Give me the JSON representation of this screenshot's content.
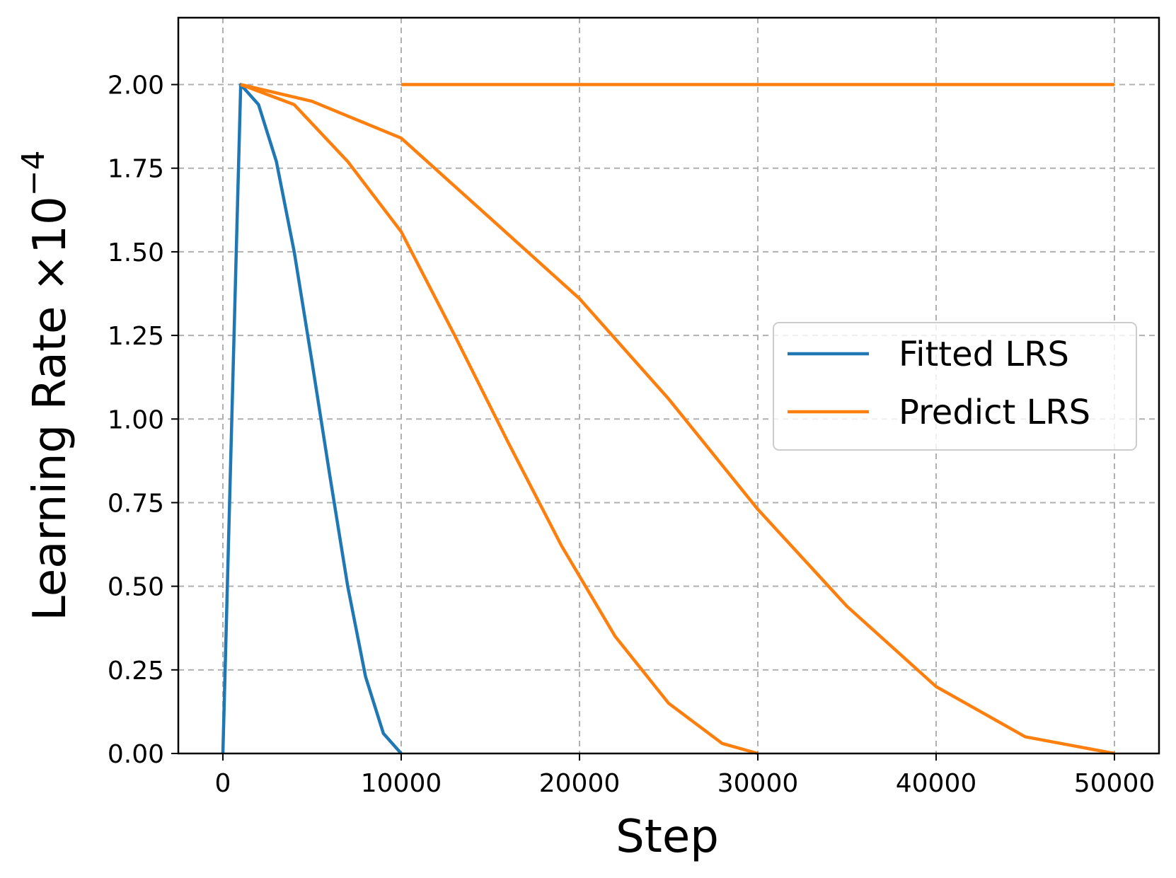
{
  "chart_data": {
    "type": "line",
    "xlabel": "Step",
    "ylabel": "Learning Rate ×10",
    "ylabel_exponent": "−4",
    "xlim": [
      -2500,
      52500
    ],
    "ylim": [
      0,
      2.2
    ],
    "grid": true,
    "legend_position": "center-right",
    "x_ticks": [
      0,
      10000,
      20000,
      30000,
      40000,
      50000
    ],
    "x_tick_labels": [
      "0",
      "10000",
      "20000",
      "30000",
      "40000",
      "50000"
    ],
    "y_ticks": [
      0,
      0.25,
      0.5,
      0.75,
      1.0,
      1.25,
      1.5,
      1.75,
      2.0
    ],
    "y_tick_labels": [
      "0.00",
      "0.25",
      "0.50",
      "0.75",
      "1.00",
      "1.25",
      "1.50",
      "1.75",
      "2.00"
    ],
    "series": [
      {
        "name": "Fitted LRS",
        "color": "#1f77b4",
        "x": [
          0,
          1000,
          2000,
          3000,
          4000,
          5000,
          6000,
          7000,
          8000,
          9000,
          10000
        ],
        "y": [
          0,
          2.0,
          1.94,
          1.77,
          1.5,
          1.17,
          0.83,
          0.5,
          0.23,
          0.06,
          0.0
        ]
      },
      {
        "name": "Predict LRS",
        "color": "#ff7f0e",
        "x": [
          10000,
          20000,
          30000,
          40000,
          50000
        ],
        "y": [
          2.0,
          2.0,
          2.0,
          2.0,
          2.0
        ]
      },
      {
        "name": "Predict LRS",
        "color": "#ff7f0e",
        "x": [
          1000,
          4000,
          7000,
          10000,
          13000,
          16000,
          19000,
          22000,
          25000,
          28000,
          30000
        ],
        "y": [
          2.0,
          1.94,
          1.77,
          1.56,
          1.25,
          0.93,
          0.62,
          0.35,
          0.15,
          0.03,
          0.0
        ]
      },
      {
        "name": "Predict LRS",
        "color": "#ff7f0e",
        "x": [
          1000,
          5000,
          10000,
          15000,
          20000,
          25000,
          30000,
          35000,
          40000,
          45000,
          50000
        ],
        "y": [
          2.0,
          1.95,
          1.84,
          1.6,
          1.36,
          1.06,
          0.73,
          0.44,
          0.2,
          0.05,
          0.0
        ]
      }
    ],
    "legend": [
      {
        "label": "Fitted LRS",
        "color": "#1f77b4"
      },
      {
        "label": "Predict LRS",
        "color": "#ff7f0e"
      }
    ]
  }
}
